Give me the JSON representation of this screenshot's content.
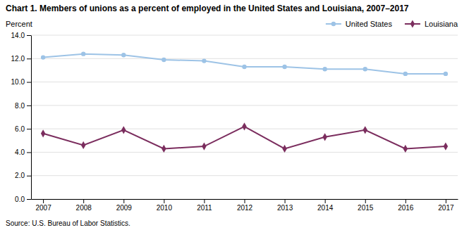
{
  "chart_data": {
    "type": "line",
    "title": "Chart 1. Members of unions as a percent of employed in the United States and Louisiana, 2007–2017",
    "ylabel": "Percent",
    "source": "Source: U.S. Bureau of Labor Statistics.",
    "x": [
      2007,
      2008,
      2009,
      2010,
      2011,
      2012,
      2013,
      2014,
      2015,
      2016,
      2017
    ],
    "xlim": [
      2006.7,
      2017.3
    ],
    "xticks": [
      2007,
      2008,
      2009,
      2010,
      2011,
      2012,
      2013,
      2014,
      2015,
      2016,
      2017
    ],
    "ylim": [
      0,
      14.0
    ],
    "yticks": [
      {
        "value": 0.0,
        "label": "0.0"
      },
      {
        "value": 2.0,
        "label": "2.0"
      },
      {
        "value": 4.0,
        "label": "4.0"
      },
      {
        "value": 6.0,
        "label": "6.0"
      },
      {
        "value": 8.0,
        "label": "8.0"
      },
      {
        "value": 10.0,
        "label": "10.0"
      },
      {
        "value": 12.0,
        "label": "12.0"
      },
      {
        "value": 14.0,
        "label": "14.0"
      }
    ],
    "grid": true,
    "legend": "top",
    "series": [
      {
        "name": "United States",
        "color": "#9dc3e6",
        "marker": "circle",
        "values": [
          12.1,
          12.4,
          12.3,
          11.9,
          11.8,
          11.3,
          11.3,
          11.1,
          11.1,
          10.7,
          10.7
        ]
      },
      {
        "name": "Louisiana",
        "color": "#7b2d5e",
        "marker": "diamond",
        "values": [
          5.6,
          4.6,
          5.9,
          4.3,
          4.5,
          6.2,
          4.3,
          5.3,
          5.9,
          4.3,
          4.5
        ]
      }
    ]
  }
}
